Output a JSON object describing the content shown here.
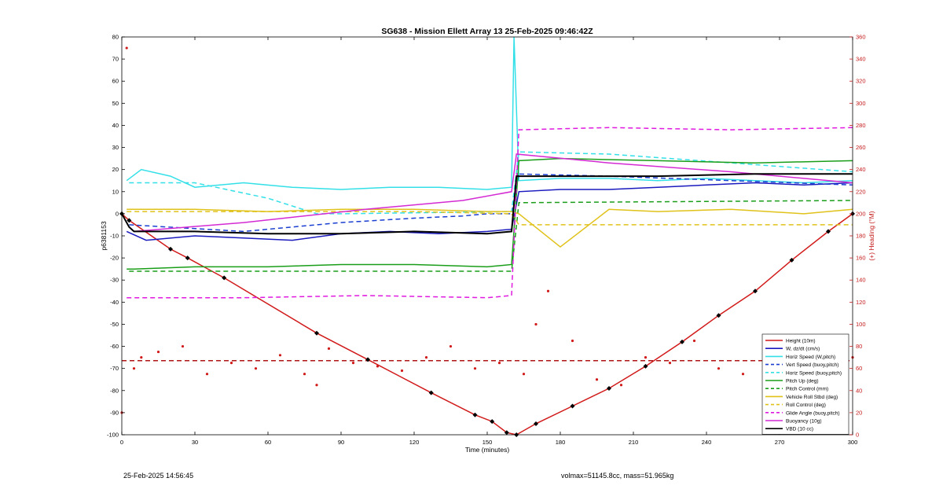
{
  "footer": {
    "timestamp": "25-Feb-2025 14:56:45",
    "volmax_mass": "volmax=51145.8cc, mass=51.965kg"
  },
  "chart_data": {
    "type": "line",
    "title": "SG638 - Mission Ellett Array 13 25-Feb-2025 09:46:42Z",
    "xlabel": "Time (minutes)",
    "ylabel_left": "p6381153",
    "ylabel_right": "(+) Heading (°M)",
    "xlim": [
      0,
      300
    ],
    "ylim_left": [
      -100,
      80
    ],
    "ylim_right": [
      0,
      360
    ],
    "x_ticks": [
      0,
      30,
      60,
      90,
      120,
      150,
      180,
      210,
      240,
      270,
      300
    ],
    "y_ticks_left": [
      -100,
      -90,
      -80,
      -70,
      -60,
      -50,
      -40,
      -30,
      -20,
      -10,
      0,
      10,
      20,
      30,
      40,
      50,
      60,
      70,
      80
    ],
    "y_ticks_right": [
      0,
      20,
      40,
      60,
      80,
      100,
      120,
      140,
      160,
      180,
      200,
      220,
      240,
      260,
      280,
      300,
      320,
      340,
      360
    ],
    "grid": false,
    "legend_position": "bottom-right",
    "legend": [
      {
        "label": "Height (10m)",
        "color": "#d11a1a",
        "style": "solid"
      },
      {
        "label": "W, dz/dt (cm/s)",
        "color": "#1a1abf",
        "style": "solid"
      },
      {
        "label": "Horiz Speed (W,pitch)",
        "color": "#34e0e8",
        "style": "solid"
      },
      {
        "label": "Vert Speed (buoy,pitch)",
        "color": "#1a3fd1",
        "style": "dashed"
      },
      {
        "label": "Horiz Speed (buoy,pitch)",
        "color": "#34e0e8",
        "style": "dashed"
      },
      {
        "label": "Pitch Up (deg)",
        "color": "#1a9e1a",
        "style": "solid"
      },
      {
        "label": "Pitch Control (mm)",
        "color": "#1a9e1a",
        "style": "dashed"
      },
      {
        "label": "Vehicle Roll Stbd (deg)",
        "color": "#e0c21a",
        "style": "solid"
      },
      {
        "label": "Roll Control (deg)",
        "color": "#e0c21a",
        "style": "dashed"
      },
      {
        "label": "Glide Angle (buoy,pitch)",
        "color": "#e01ae0",
        "style": "dashed"
      },
      {
        "label": "Buoyancy (10g)",
        "color": "#d42ad4",
        "style": "solid"
      },
      {
        "label": "VBD (10 cc)",
        "color": "#000000",
        "style": "solid"
      }
    ],
    "series": [
      {
        "name": "Height (10m)",
        "axis": "left",
        "color": "#d11a1a",
        "style": "solid",
        "markers": true,
        "x": [
          0,
          3,
          20,
          27,
          42,
          80,
          101,
          127,
          145,
          152,
          158,
          162,
          170,
          185,
          200,
          215,
          230,
          245,
          260,
          275,
          290,
          300
        ],
        "y": [
          0,
          -3,
          -16,
          -20,
          -29,
          -54,
          -66,
          -81,
          -91,
          -94,
          -99,
          -100,
          -95,
          -87,
          -79,
          -69,
          -58,
          -46,
          -35,
          -21,
          -8,
          0
        ]
      },
      {
        "name": "W, dz/dt (cm/s)",
        "axis": "left",
        "color": "#1a1abf",
        "style": "solid",
        "x": [
          2,
          10,
          30,
          50,
          70,
          90,
          110,
          130,
          150,
          160,
          163,
          180,
          200,
          220,
          240,
          260,
          280,
          300
        ],
        "y": [
          -8,
          -12,
          -10,
          -11,
          -12,
          -9,
          -8,
          -9,
          -8,
          -7,
          10,
          11,
          11,
          12,
          13,
          14,
          13,
          14
        ]
      },
      {
        "name": "Horiz Speed (W,pitch)",
        "axis": "left",
        "color": "#34e0e8",
        "style": "solid",
        "x": [
          2,
          8,
          20,
          30,
          50,
          70,
          90,
          110,
          130,
          150,
          160,
          161,
          163,
          180,
          200,
          220,
          240,
          260,
          280,
          300
        ],
        "y": [
          15,
          20,
          17,
          12,
          14,
          12,
          11,
          12,
          12,
          11,
          12,
          80,
          15,
          16,
          16,
          15,
          16,
          15,
          14,
          15
        ]
      },
      {
        "name": "Vert Speed (buoy,pitch)",
        "axis": "left",
        "color": "#1a3fd1",
        "style": "dashed",
        "x": [
          3,
          50,
          90,
          120,
          140,
          150,
          160,
          163,
          200,
          250,
          300
        ],
        "y": [
          -5,
          -8,
          -4,
          -2,
          -1,
          0,
          0,
          18,
          17,
          15,
          13
        ]
      },
      {
        "name": "Horiz Speed (buoy,pitch)",
        "axis": "left",
        "color": "#34e0e8",
        "style": "dashed",
        "x": [
          3,
          30,
          60,
          80,
          90,
          160,
          163,
          200,
          250,
          300
        ],
        "y": [
          14,
          14,
          7,
          0,
          0,
          1,
          28,
          27,
          23,
          19
        ]
      },
      {
        "name": "Pitch Up (deg)",
        "axis": "left",
        "color": "#1a9e1a",
        "style": "solid",
        "x": [
          2,
          5,
          30,
          60,
          90,
          120,
          150,
          160,
          163,
          180,
          220,
          260,
          300
        ],
        "y": [
          -25,
          -25,
          -24,
          -24,
          -23,
          -23,
          -24,
          -23,
          24,
          25,
          24,
          23,
          24
        ]
      },
      {
        "name": "Pitch Control (mm)",
        "axis": "left",
        "color": "#1a9e1a",
        "style": "dashed",
        "x": [
          3,
          160,
          163,
          300
        ],
        "y": [
          -26,
          -26,
          5,
          6
        ]
      },
      {
        "name": "Vehicle Roll Stbd (deg)",
        "axis": "left",
        "color": "#e0c21a",
        "style": "solid",
        "x": [
          2,
          30,
          60,
          90,
          120,
          150,
          160,
          163,
          180,
          200,
          220,
          250,
          280,
          300
        ],
        "y": [
          2,
          2,
          1,
          2,
          2,
          1,
          1,
          0,
          -15,
          2,
          1,
          2,
          0,
          2
        ]
      },
      {
        "name": "Roll Control (deg)",
        "axis": "left",
        "color": "#e0c21a",
        "style": "dashed",
        "x": [
          2,
          30,
          60,
          90,
          120,
          160,
          163,
          200,
          250,
          300
        ],
        "y": [
          1,
          1,
          1,
          1,
          1,
          0,
          -5,
          -5,
          -5,
          -5
        ]
      },
      {
        "name": "Glide Angle (buoy,pitch)",
        "axis": "left",
        "color": "#e01ae0",
        "style": "dashed",
        "x": [
          2,
          50,
          100,
          150,
          160,
          163,
          200,
          250,
          300
        ],
        "y": [
          -38,
          -38,
          -37,
          -38,
          -37,
          38,
          39,
          38,
          39
        ]
      },
      {
        "name": "Buoyancy (10g)",
        "axis": "left",
        "color": "#d42ad4",
        "style": "solid",
        "x": [
          5,
          50,
          100,
          140,
          160,
          162,
          200,
          250,
          300
        ],
        "y": [
          -8,
          -4,
          2,
          6,
          10,
          27,
          23,
          19,
          14
        ]
      },
      {
        "name": "VBD (10 cc)",
        "axis": "left",
        "color": "#000000",
        "style": "solid",
        "x": [
          0,
          3,
          5,
          30,
          60,
          90,
          120,
          150,
          160,
          162,
          180,
          220,
          260,
          300
        ],
        "y": [
          0,
          -6,
          -8,
          -8,
          -9,
          -9,
          -8,
          -9,
          -8,
          17,
          17,
          17,
          18,
          18
        ]
      },
      {
        "name": "Heading",
        "axis": "right",
        "color": "#d11a1a",
        "style": "dots",
        "x": [
          0,
          2,
          5,
          8,
          15,
          25,
          35,
          45,
          55,
          65,
          75,
          80,
          85,
          95,
          105,
          115,
          125,
          135,
          145,
          155,
          165,
          170,
          175,
          185,
          195,
          205,
          215,
          225,
          235,
          245,
          255,
          265,
          275,
          285,
          295,
          300
        ],
        "y": [
          20,
          350,
          60,
          70,
          75,
          80,
          55,
          65,
          60,
          72,
          55,
          45,
          78,
          65,
          62,
          58,
          70,
          80,
          60,
          65,
          55,
          100,
          130,
          85,
          50,
          45,
          70,
          65,
          85,
          60,
          55,
          90,
          62,
          45,
          75,
          70
        ]
      },
      {
        "name": "Mean Heading",
        "axis": "right",
        "color": "#b01515",
        "style": "dashed",
        "x": [
          0,
          300
        ],
        "y": [
          67,
          67
        ]
      }
    ]
  }
}
